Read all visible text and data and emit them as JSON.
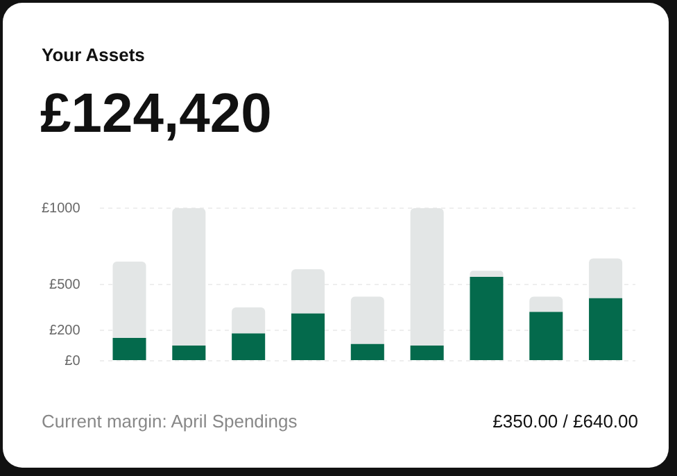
{
  "chart_data": {
    "type": "bar",
    "title": "Your Assets",
    "subtitle": "£124,420",
    "categories": [
      null,
      null,
      null,
      null,
      null,
      null,
      null,
      null,
      null
    ],
    "series": [
      {
        "color": "#046a4c",
        "values": [
          150,
          100,
          180,
          310,
          110,
          100,
          550,
          320,
          410
        ]
      },
      {
        "color": "#e3e6e6",
        "values": [
          500,
          900,
          170,
          290,
          310,
          900,
          40,
          100,
          260
        ]
      }
    ],
    "stacked": true,
    "ylim": [
      0,
      1000
    ],
    "yticks": [
      {
        "value": 0,
        "label": "£0"
      },
      {
        "value": 200,
        "label": "£200"
      },
      {
        "value": 500,
        "label": "£500"
      },
      {
        "value": 1000,
        "label": "£1000"
      }
    ],
    "grid": "y",
    "legend": false,
    "tick_labels": "y",
    "annotations": [
      "Current margin: April Spendings",
      "£350.00 / £640.00"
    ]
  }
}
